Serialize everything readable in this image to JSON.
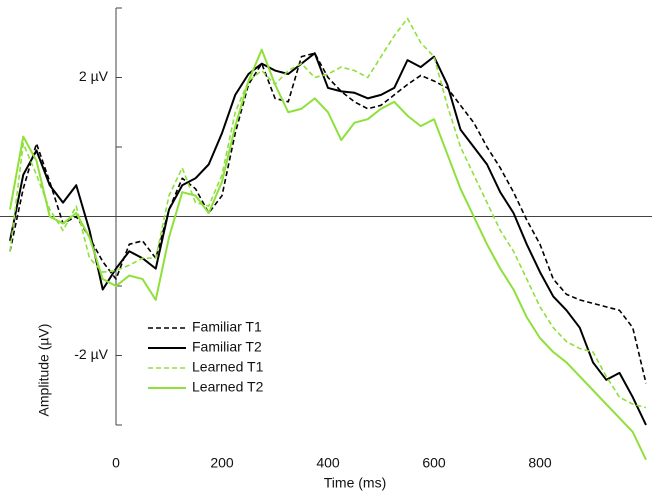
{
  "chart_data": {
    "type": "line",
    "xlabel": "Time (ms)",
    "ylabel": "Amplitude (µV)",
    "x": [
      -200,
      -175,
      -150,
      -125,
      -100,
      -75,
      -50,
      -25,
      0,
      25,
      50,
      75,
      100,
      125,
      150,
      175,
      200,
      225,
      250,
      275,
      300,
      325,
      350,
      375,
      400,
      425,
      450,
      475,
      500,
      525,
      550,
      575,
      600,
      625,
      650,
      675,
      700,
      725,
      750,
      775,
      800,
      825,
      850,
      875,
      900,
      925,
      950,
      975,
      1000
    ],
    "xlim": [
      -200,
      1000
    ],
    "xticks": [
      0,
      200,
      400,
      600,
      800
    ],
    "ylim": [
      -3,
      3
    ],
    "yticks": [
      {
        "value": -2,
        "label": "-2 µV"
      },
      {
        "value": 2,
        "label": "2 µV"
      }
    ],
    "yticks_minor": [
      -3,
      -1,
      1,
      3
    ],
    "zero_line": true,
    "legend": "lower left",
    "series": [
      {
        "name": "Familiar T1",
        "color": "#000000",
        "dashed": true,
        "values": [
          -0.5,
          0.4,
          1.05,
          0.5,
          -0.1,
          0.0,
          -0.3,
          -0.65,
          -0.9,
          -0.4,
          -0.35,
          -0.6,
          0.1,
          0.55,
          0.4,
          0.05,
          0.3,
          1.2,
          1.9,
          2.2,
          1.7,
          1.65,
          2.3,
          2.35,
          2.0,
          1.8,
          1.65,
          1.55,
          1.6,
          1.75,
          1.9,
          2.03,
          1.95,
          1.85,
          1.6,
          1.35,
          1.0,
          0.7,
          0.35,
          -0.05,
          -0.4,
          -0.9,
          -1.12,
          -1.2,
          -1.25,
          -1.3,
          -1.35,
          -1.6,
          -2.4
        ]
      },
      {
        "name": "Familiar T2",
        "color": "#000000",
        "dashed": false,
        "values": [
          -0.35,
          0.6,
          0.95,
          0.45,
          0.2,
          0.45,
          -0.2,
          -1.05,
          -0.75,
          -0.5,
          -0.6,
          -0.75,
          0.1,
          0.45,
          0.55,
          0.75,
          1.2,
          1.75,
          2.05,
          2.2,
          2.1,
          2.05,
          2.2,
          2.35,
          1.85,
          1.8,
          1.78,
          1.7,
          1.75,
          1.85,
          2.25,
          2.15,
          2.3,
          1.9,
          1.25,
          1.0,
          0.75,
          0.35,
          0.05,
          -0.4,
          -0.8,
          -1.15,
          -1.35,
          -1.6,
          -2.1,
          -2.35,
          -2.25,
          -2.6,
          -3.0
        ]
      },
      {
        "name": "Learned T1",
        "color": "#8ee03a",
        "dashed": true,
        "values": [
          -0.5,
          1.05,
          0.6,
          0.1,
          -0.2,
          0.15,
          -0.6,
          -0.8,
          -0.78,
          -0.7,
          -0.6,
          -0.6,
          0.3,
          0.7,
          0.2,
          0.15,
          0.6,
          1.5,
          1.95,
          2.1,
          1.9,
          2.1,
          2.2,
          2.0,
          2.05,
          2.15,
          2.1,
          2.0,
          2.3,
          2.6,
          2.85,
          2.5,
          2.3,
          1.6,
          1.0,
          0.6,
          0.2,
          -0.2,
          -0.5,
          -0.9,
          -1.3,
          -1.6,
          -1.8,
          -1.9,
          -1.95,
          -2.3,
          -2.6,
          -2.7,
          -2.75
        ]
      },
      {
        "name": "Learned T2",
        "color": "#8ee03a",
        "dashed": false,
        "values": [
          0.1,
          1.15,
          0.8,
          0.0,
          -0.1,
          0.05,
          -0.3,
          -0.9,
          -1.0,
          -0.85,
          -0.9,
          -1.2,
          -0.3,
          0.35,
          0.3,
          0.05,
          0.5,
          1.3,
          1.95,
          2.4,
          1.9,
          1.5,
          1.55,
          1.7,
          1.5,
          1.1,
          1.35,
          1.4,
          1.55,
          1.65,
          1.45,
          1.3,
          1.4,
          0.9,
          0.4,
          0.0,
          -0.4,
          -0.75,
          -1.05,
          -1.45,
          -1.75,
          -1.95,
          -2.1,
          -2.3,
          -2.5,
          -2.7,
          -2.9,
          -3.1,
          -3.5
        ]
      }
    ]
  }
}
